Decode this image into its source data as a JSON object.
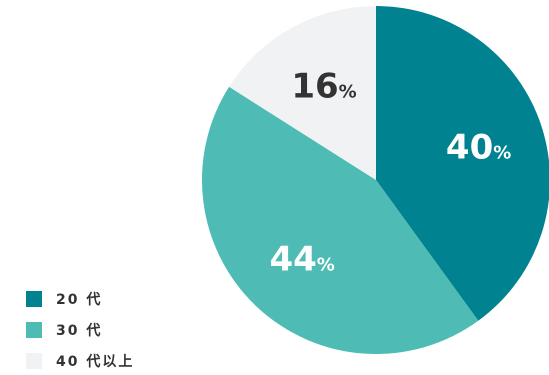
{
  "chart_data": {
    "type": "pie",
    "categories": [
      "20 代",
      "30 代",
      "40 代以上"
    ],
    "values": [
      40,
      44,
      16
    ],
    "value_suffix": "%",
    "colors": [
      "#008291",
      "#4ebcb5",
      "#f1f2f4"
    ],
    "label_colors": [
      "#ffffff",
      "#ffffff",
      "#333333"
    ],
    "legend_position": "bottom-left",
    "start_angle_deg": 0,
    "direction": "clockwise"
  }
}
